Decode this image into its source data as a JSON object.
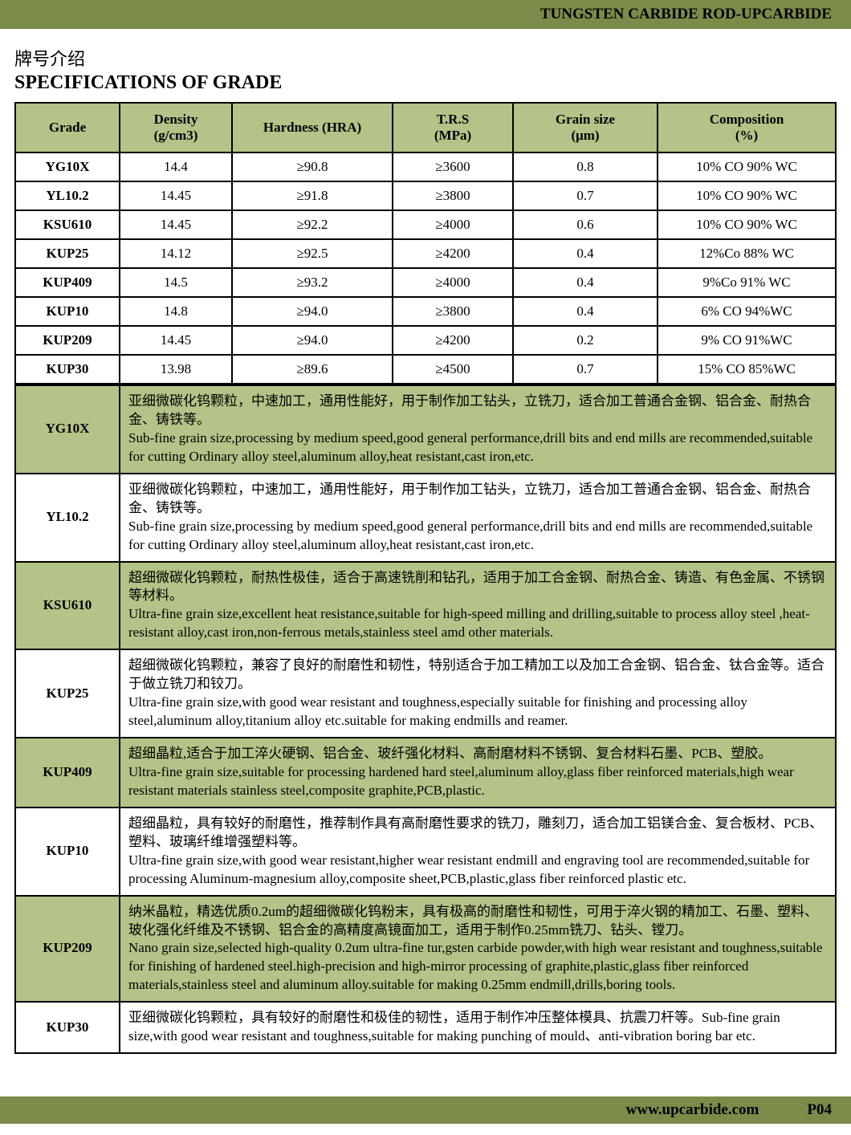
{
  "header": {
    "top_title": "TUNGSTEN CARBIDE ROD-UPCARBIDE",
    "subtitle_cn": "牌号介绍",
    "title_en": "SPECIFICATIONS OF GRADE"
  },
  "spec_table": {
    "columns": [
      "Grade",
      "Density\n(g/cm3)",
      "Hardness (HRA)",
      "T.R.S\n(MPa)",
      "Grain size\n(μm)",
      "Composition\n(%)"
    ],
    "col_widths": [
      "130px",
      "140px",
      "200px",
      "150px",
      "180px",
      "auto"
    ],
    "rows": [
      [
        "YG10X",
        "14.4",
        "≥90.8",
        "≥3600",
        "0.8",
        "10% CO 90% WC"
      ],
      [
        "YL10.2",
        "14.45",
        "≥91.8",
        "≥3800",
        "0.7",
        "10% CO 90% WC"
      ],
      [
        "KSU610",
        "14.45",
        "≥92.2",
        "≥4000",
        "0.6",
        "10% CO  90%  WC"
      ],
      [
        "KUP25",
        "14.12",
        "≥92.5",
        "≥4200",
        "0.4",
        "12%Co 88% WC"
      ],
      [
        "KUP409",
        "14.5",
        "≥93.2",
        "≥4000",
        "0.4",
        "9%Co 91% WC"
      ],
      [
        "KUP10",
        "14.8",
        "≥94.0",
        "≥3800",
        "0.4",
        "6% CO 94%WC"
      ],
      [
        "KUP209",
        "14.45",
        "≥94.0",
        "≥4200",
        "0.2",
        "9% CO 91%WC"
      ],
      [
        "KUP30",
        "13.98",
        "≥89.6",
        "≥4500",
        "0.7",
        "15% CO 85%WC"
      ]
    ]
  },
  "desc_table": {
    "rows": [
      {
        "grade": "YG10X",
        "cn": "亚细微碳化钨颗粒，中速加工，通用性能好，用于制作加工钻头，立铣刀，适合加工普通合金钢、铝合金、耐热合金、铸铁等。",
        "en": "Sub-fine grain size,processing by medium speed,good general performance,drill bits and end mills are recommended,suitable for cutting Ordinary alloy steel,aluminum alloy,heat resistant,cast iron,etc."
      },
      {
        "grade": "YL10.2",
        "cn": "亚细微碳化钨颗粒，中速加工，通用性能好，用于制作加工钻头，立铣刀，适合加工普通合金钢、铝合金、耐热合金、铸铁等。",
        "en": "Sub-fine grain size,processing by medium speed,good general performance,drill bits and end mills are recommended,suitable for cutting Ordinary alloy steel,aluminum alloy,heat resistant,cast iron,etc."
      },
      {
        "grade": "KSU610",
        "cn": "超细微碳化钨颗粒，耐热性极佳，适合于高速铣削和钻孔，适用于加工合金钢、耐热合金、铸造、有色金属、不锈钢等材料。",
        "en": "Ultra-fine grain size,excellent heat resistance,suitable for high-speed milling and drilling,suitable to process alloy steel ,heat-resistant alloy,cast iron,non-ferrous metals,stainless steel amd other materials."
      },
      {
        "grade": "KUP25",
        "cn": "超细微碳化钨颗粒，兼容了良好的耐磨性和韧性，特别适合于加工精加工以及加工合金钢、铝合金、钛合金等。适合于做立铣刀和铰刀。",
        "en": "Ultra-fine grain size,with good wear resistant and toughness,especially suitable for finishing and processing alloy steel,aluminum alloy,titanium alloy etc.suitable for making endmills and reamer."
      },
      {
        "grade": "KUP409",
        "cn": "超细晶粒,适合于加工淬火硬钢、铝合金、玻纤强化材料、高耐磨材料不锈钢、复合材料石墨、PCB、塑胶。",
        "en": "Ultra-fine grain size,suitable for processing hardened hard steel,aluminum alloy,glass fiber reinforced materials,high wear resistant materials stainless steel,composite graphite,PCB,plastic."
      },
      {
        "grade": "KUP10",
        "cn": "超细晶粒，具有较好的耐磨性，推荐制作具有高耐磨性要求的铣刀，雕刻刀，适合加工铝镁合金、复合板材、PCB、塑料、玻璃纤维增强塑料等。",
        "en": "Ultra-fine grain size,with good wear resistant,higher wear resistant endmill and engraving tool are recommended,suitable for processing Aluminum-magnesium alloy,composite sheet,PCB,plastic,glass fiber reinforced plastic etc."
      },
      {
        "grade": "KUP209",
        "cn": "纳米晶粒，精选优质0.2um的超细微碳化钨粉末，具有极高的耐磨性和韧性，可用于淬火钢的精加工、石墨、塑料、玻化强化纤维及不锈钢、铝合金的高精度高镜面加工，适用于制作0.25mm铣刀、钻头、镗刀。",
        "en": "Nano grain size,selected high-quality 0.2um ultra-fine tur,gsten carbide powder,with high wear resistant and toughness,suitable for finishing of hardened steel.high-precision and high-mirror processing of graphite,plastic,glass fiber reinforced materials,stainless steel and aluminum alloy.suitable for making 0.25mm endmill,drills,boring tools."
      },
      {
        "grade": "KUP30",
        "cn": "亚细微碳化钨颗粒，具有较好的耐磨性和极佳的韧性，适用于制作冲压整体模具、抗震刀杆等。",
        "en": "Sub-fine grain size,with good wear resistant and toughness,suitable for making punching of mould、anti-vibration boring bar etc."
      }
    ]
  },
  "footer": {
    "url": "www.upcarbide.com",
    "page": "P04"
  },
  "colors": {
    "olive": "#7b8b4a",
    "light_olive": "#b4c387",
    "border": "#000000",
    "background": "#ffffff"
  }
}
